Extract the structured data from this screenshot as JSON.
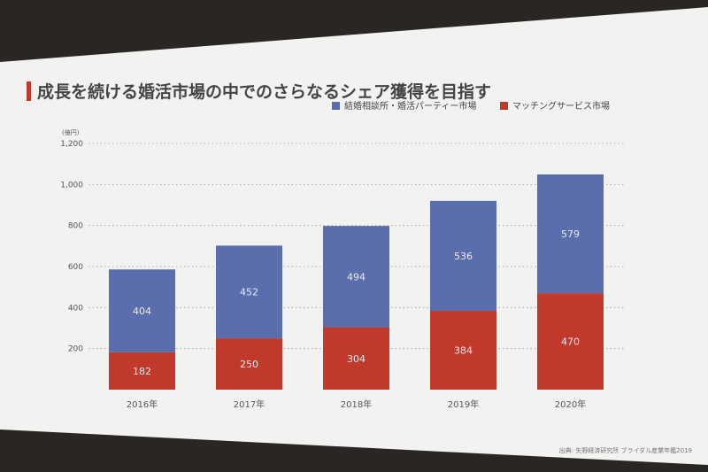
{
  "slide": {
    "title": "成長を続ける婚活市場の中でのさらなるシェア獲得を目指す",
    "source_note": "出典: 矢野経済研究所 ブライダル産業年鑑2019"
  },
  "colors": {
    "series_1": "#5a6dac",
    "series_2": "#c0392b",
    "label_text": "#e8ecf4",
    "axis_text": "#555555",
    "background": "#f2f2f0"
  },
  "chart_data": {
    "type": "bar",
    "stacked": true,
    "categories": [
      "2016年",
      "2017年",
      "2018年",
      "2019年",
      "2020年"
    ],
    "series": [
      {
        "name": "マッチングサービス市場",
        "values": [
          182,
          250,
          304,
          384,
          470
        ]
      },
      {
        "name": "結婚相談所・婚活パーティー市場",
        "values": [
          404,
          452,
          494,
          536,
          579
        ]
      }
    ],
    "ylabel": "(億円)",
    "ylim": [
      0,
      1200
    ],
    "yticks": [
      200,
      400,
      600,
      800,
      1000,
      1200
    ],
    "ytick_labels": [
      "200",
      "400",
      "600",
      "800",
      "1,000",
      "1,200"
    ],
    "grid": true,
    "legend_position": "top-right"
  }
}
